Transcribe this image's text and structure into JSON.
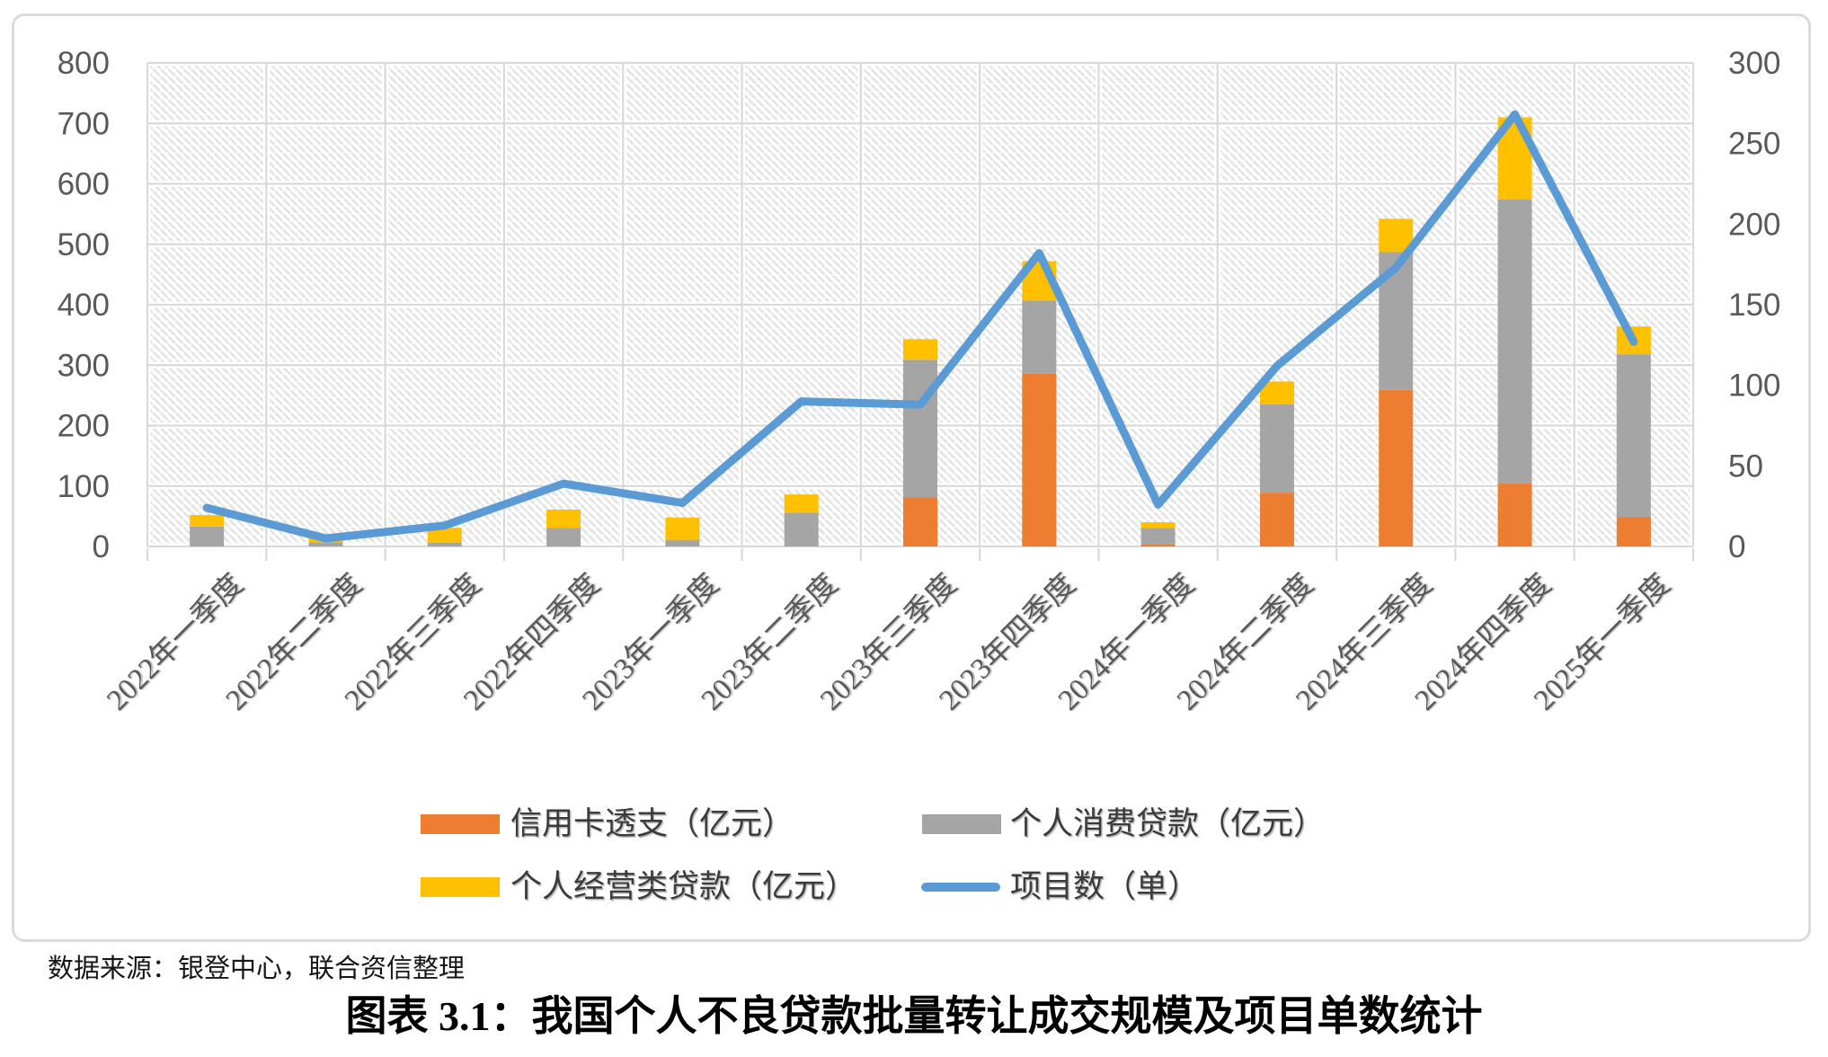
{
  "title": "图表 3.1：我国个人不良贷款批量转让成交规模及项目单数统计",
  "source": "数据来源：银登中心，联合资信整理",
  "legend": {
    "items": [
      {
        "label": "信用卡透支（亿元）",
        "color": "#ED7D31",
        "shape": "rect"
      },
      {
        "label": "个人消费贷款（亿元）",
        "color": "#A5A5A5",
        "shape": "rect"
      },
      {
        "label": "个人经营类贷款（亿元）",
        "color": "#FFC000",
        "shape": "rect"
      },
      {
        "label": "项目数（单）",
        "color": "#5B9BD5",
        "shape": "line"
      }
    ]
  },
  "chart_data": {
    "type": "combo: stacked-bar + line (dual axis)",
    "categories": [
      "2022年一季度",
      "2022年二季度",
      "2022年三季度",
      "2022年四季度",
      "2023年一季度",
      "2023年二季度",
      "2023年三季度",
      "2023年四季度",
      "2024年一季度",
      "2024年二季度",
      "2024年三季度",
      "2024年四季度",
      "2025年一季度"
    ],
    "series": [
      {
        "name": "信用卡透支（亿元）",
        "type": "bar",
        "stack": "volume",
        "axis": "left",
        "color": "#ED7D31",
        "values": [
          0,
          0,
          0,
          0,
          0,
          0,
          81,
          286,
          3,
          89,
          259,
          104,
          49
        ]
      },
      {
        "name": "个人消费贷款（亿元）",
        "type": "bar",
        "stack": "volume",
        "axis": "left",
        "color": "#A5A5A5",
        "values": [
          33,
          7,
          6,
          31,
          11,
          56,
          228,
          121,
          28,
          146,
          228,
          470,
          269
        ]
      },
      {
        "name": "个人经营类贷款（亿元）",
        "type": "bar",
        "stack": "volume",
        "axis": "left",
        "color": "#FFC000",
        "values": [
          19,
          9,
          25,
          30,
          37,
          30,
          34,
          65,
          9,
          38,
          55,
          136,
          46
        ]
      },
      {
        "name": "项目数（单）",
        "type": "line",
        "axis": "right",
        "color": "#5B9BD5",
        "values": [
          24,
          5,
          13,
          39,
          27,
          90,
          88,
          182,
          26,
          112,
          173,
          268,
          127
        ]
      }
    ],
    "left_axis": {
      "min": 0,
      "max": 800,
      "step": 100,
      "ticks": [
        "0",
        "100",
        "200",
        "300",
        "400",
        "500",
        "600",
        "700",
        "800"
      ]
    },
    "right_axis": {
      "min": 0,
      "max": 300,
      "step": 50,
      "ticks": [
        "0",
        "50",
        "100",
        "150",
        "200",
        "250",
        "300"
      ]
    },
    "grid": true,
    "legend_position": "bottom",
    "plot_background": "light diagonal hatch",
    "colors": {
      "gridline": "#D9D9D9",
      "axis_text": "#595959",
      "hatch_line": "#E3E3E3"
    }
  }
}
